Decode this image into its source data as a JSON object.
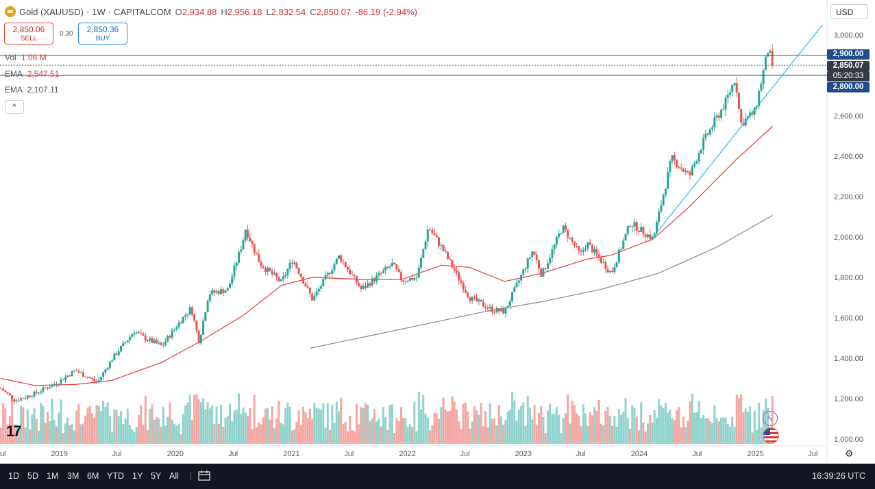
{
  "header": {
    "symbol": "Gold (XAUUSD)",
    "separator": "·",
    "interval": "1W",
    "exchange": "CAPITALCOM",
    "open_label": "O",
    "open": "2,934.88",
    "high_label": "H",
    "high": "2,956.18",
    "low_label": "L",
    "low": "2,832.54",
    "close_label": "C",
    "close": "2,850.07",
    "change": "-86.19",
    "change_pct": "(-2.94%)"
  },
  "trade": {
    "sell_price": "2,850.06",
    "sell_label": "SELL",
    "spread": "0.30",
    "buy_price": "2,850.36",
    "buy_label": "BUY"
  },
  "indicators": {
    "vol_label": "Vol",
    "vol_value": "1.06 M",
    "ema1_label": "EMA",
    "ema1_value": "2,547.51",
    "ema2_label": "EMA",
    "ema2_value": "2,107.11",
    "collapse_icon": "^"
  },
  "price_scale": {
    "currency": "USD",
    "tag_upper": "2,900.00",
    "tag_last": "2,850.07",
    "tag_countdown": "05:20:33",
    "tag_lower": "2,800.00"
  },
  "colors": {
    "up": "#26a69a",
    "down": "#ef5350",
    "vol_up": "#8fd3cc",
    "vol_down": "#f4a6a3",
    "ema_fast": "#e53935",
    "ema_slow": "#888888",
    "trendline": "#29b6f6",
    "hline": "#1e4d8c",
    "tag_blue": "#1e4d8c",
    "tag_dark": "#333a45"
  },
  "bottom_bar": {
    "timeframes": [
      "1D",
      "5D",
      "1M",
      "3M",
      "6M",
      "YTD",
      "1Y",
      "5Y",
      "All"
    ],
    "clock": "16:39:26 UTC"
  },
  "icons": {
    "logo": "tradingview-logo",
    "calendar": "calendar-range-icon",
    "settings": "gear-icon",
    "event": "lightning-icon",
    "flag": "us-flag-icon"
  },
  "chart_data": {
    "type": "candlestick",
    "interval": "weekly",
    "currency": "USD",
    "ylim": [
      1000,
      3000
    ],
    "y_ticks": [
      1000,
      1200,
      1400,
      1600,
      1800,
      2000,
      2200,
      2400,
      2600,
      2800,
      3000
    ],
    "y_tick_labels": [
      "1,000.00",
      "1,200.00",
      "1,400.00",
      "1,600.00",
      "1,800.00",
      "2,000.00",
      "2,200.00",
      "2,400.00",
      "2,600.00",
      "2,800.00",
      "3,000.00"
    ],
    "x_range": [
      "2018-07-01",
      "2025-07-31"
    ],
    "x_ticks": [
      {
        "label": "Jul",
        "date": "2018-07-01"
      },
      {
        "label": "2019",
        "date": "2019-01-01"
      },
      {
        "label": "Jul",
        "date": "2019-07-01"
      },
      {
        "label": "2020",
        "date": "2020-01-01"
      },
      {
        "label": "Jul",
        "date": "2020-07-01"
      },
      {
        "label": "2021",
        "date": "2021-01-01"
      },
      {
        "label": "Jul",
        "date": "2021-07-01"
      },
      {
        "label": "2022",
        "date": "2022-01-01"
      },
      {
        "label": "Jul",
        "date": "2022-07-01"
      },
      {
        "label": "2023",
        "date": "2023-01-01"
      },
      {
        "label": "Jul",
        "date": "2023-07-01"
      },
      {
        "label": "2024",
        "date": "2024-01-01"
      },
      {
        "label": "Jul",
        "date": "2024-07-01"
      },
      {
        "label": "2025",
        "date": "2025-01-01"
      },
      {
        "label": "Jul",
        "date": "2025-07-01"
      }
    ],
    "price_path": [
      {
        "date": "2018-07-01",
        "close": 1250
      },
      {
        "date": "2018-08-15",
        "close": 1190
      },
      {
        "date": "2018-10-15",
        "close": 1225
      },
      {
        "date": "2018-12-31",
        "close": 1285
      },
      {
        "date": "2019-02-20",
        "close": 1340
      },
      {
        "date": "2019-05-01",
        "close": 1280
      },
      {
        "date": "2019-06-15",
        "close": 1395
      },
      {
        "date": "2019-08-25",
        "close": 1535
      },
      {
        "date": "2019-09-25",
        "close": 1500
      },
      {
        "date": "2019-11-20",
        "close": 1460
      },
      {
        "date": "2020-01-05",
        "close": 1560
      },
      {
        "date": "2020-02-20",
        "close": 1650
      },
      {
        "date": "2020-03-16",
        "close": 1480
      },
      {
        "date": "2020-04-15",
        "close": 1720
      },
      {
        "date": "2020-06-15",
        "close": 1740
      },
      {
        "date": "2020-07-31",
        "close": 1975
      },
      {
        "date": "2020-08-09",
        "close": 2040
      },
      {
        "date": "2020-09-25",
        "close": 1865
      },
      {
        "date": "2020-11-30",
        "close": 1775
      },
      {
        "date": "2021-01-05",
        "close": 1890
      },
      {
        "date": "2021-03-08",
        "close": 1690
      },
      {
        "date": "2021-05-31",
        "close": 1905
      },
      {
        "date": "2021-08-09",
        "close": 1740
      },
      {
        "date": "2021-11-15",
        "close": 1865
      },
      {
        "date": "2021-12-15",
        "close": 1785
      },
      {
        "date": "2022-01-31",
        "close": 1800
      },
      {
        "date": "2022-03-08",
        "close": 2050
      },
      {
        "date": "2022-04-18",
        "close": 1950
      },
      {
        "date": "2022-07-15",
        "close": 1700
      },
      {
        "date": "2022-09-25",
        "close": 1640
      },
      {
        "date": "2022-11-03",
        "close": 1630
      },
      {
        "date": "2023-01-31",
        "close": 1935
      },
      {
        "date": "2023-02-28",
        "close": 1810
      },
      {
        "date": "2023-05-04",
        "close": 2050
      },
      {
        "date": "2023-06-30",
        "close": 1910
      },
      {
        "date": "2023-07-20",
        "close": 1970
      },
      {
        "date": "2023-10-05",
        "close": 1820
      },
      {
        "date": "2023-12-04",
        "close": 2070
      },
      {
        "date": "2024-02-14",
        "close": 1990
      },
      {
        "date": "2024-04-12",
        "close": 2390
      },
      {
        "date": "2024-06-07",
        "close": 2300
      },
      {
        "date": "2024-07-17",
        "close": 2460
      },
      {
        "date": "2024-09-30",
        "close": 2670
      },
      {
        "date": "2024-10-30",
        "close": 2790
      },
      {
        "date": "2024-11-15",
        "close": 2560
      },
      {
        "date": "2024-12-30",
        "close": 2620
      },
      {
        "date": "2025-02-10",
        "close": 2930
      },
      {
        "date": "2025-02-24",
        "close": 2850.07
      }
    ],
    "ema_fast_path": [
      {
        "date": "2018-07-01",
        "value": 1300
      },
      {
        "date": "2018-10-15",
        "value": 1265
      },
      {
        "date": "2019-02-20",
        "value": 1270
      },
      {
        "date": "2019-06-15",
        "value": 1290
      },
      {
        "date": "2019-11-20",
        "value": 1380
      },
      {
        "date": "2020-03-16",
        "value": 1480
      },
      {
        "date": "2020-07-31",
        "value": 1610
      },
      {
        "date": "2020-11-30",
        "value": 1760
      },
      {
        "date": "2021-03-08",
        "value": 1800
      },
      {
        "date": "2021-08-09",
        "value": 1790
      },
      {
        "date": "2021-12-15",
        "value": 1790
      },
      {
        "date": "2022-04-18",
        "value": 1860
      },
      {
        "date": "2022-07-15",
        "value": 1850
      },
      {
        "date": "2022-11-03",
        "value": 1780
      },
      {
        "date": "2023-02-28",
        "value": 1820
      },
      {
        "date": "2023-07-20",
        "value": 1890
      },
      {
        "date": "2023-10-05",
        "value": 1910
      },
      {
        "date": "2024-02-14",
        "value": 1990
      },
      {
        "date": "2024-06-07",
        "value": 2150
      },
      {
        "date": "2024-10-30",
        "value": 2380
      },
      {
        "date": "2025-02-24",
        "value": 2547.51
      }
    ],
    "ema_slow_path": [
      {
        "date": "2021-03-01",
        "value": 1450
      },
      {
        "date": "2021-09-01",
        "value": 1510
      },
      {
        "date": "2022-03-01",
        "value": 1570
      },
      {
        "date": "2022-09-01",
        "value": 1630
      },
      {
        "date": "2023-03-01",
        "value": 1680
      },
      {
        "date": "2023-09-01",
        "value": 1740
      },
      {
        "date": "2024-03-01",
        "value": 1820
      },
      {
        "date": "2024-09-01",
        "value": 1950
      },
      {
        "date": "2025-02-24",
        "value": 2107.11
      }
    ],
    "horizontal_lines": [
      2900.0,
      2800.0
    ],
    "last_price_line": 2850.07,
    "trendline": {
      "start": {
        "date": "2024-02-14",
        "value": 2000
      },
      "end": {
        "date": "2025-07-31",
        "value": 3050
      }
    },
    "volume_last": "1.06 M"
  }
}
